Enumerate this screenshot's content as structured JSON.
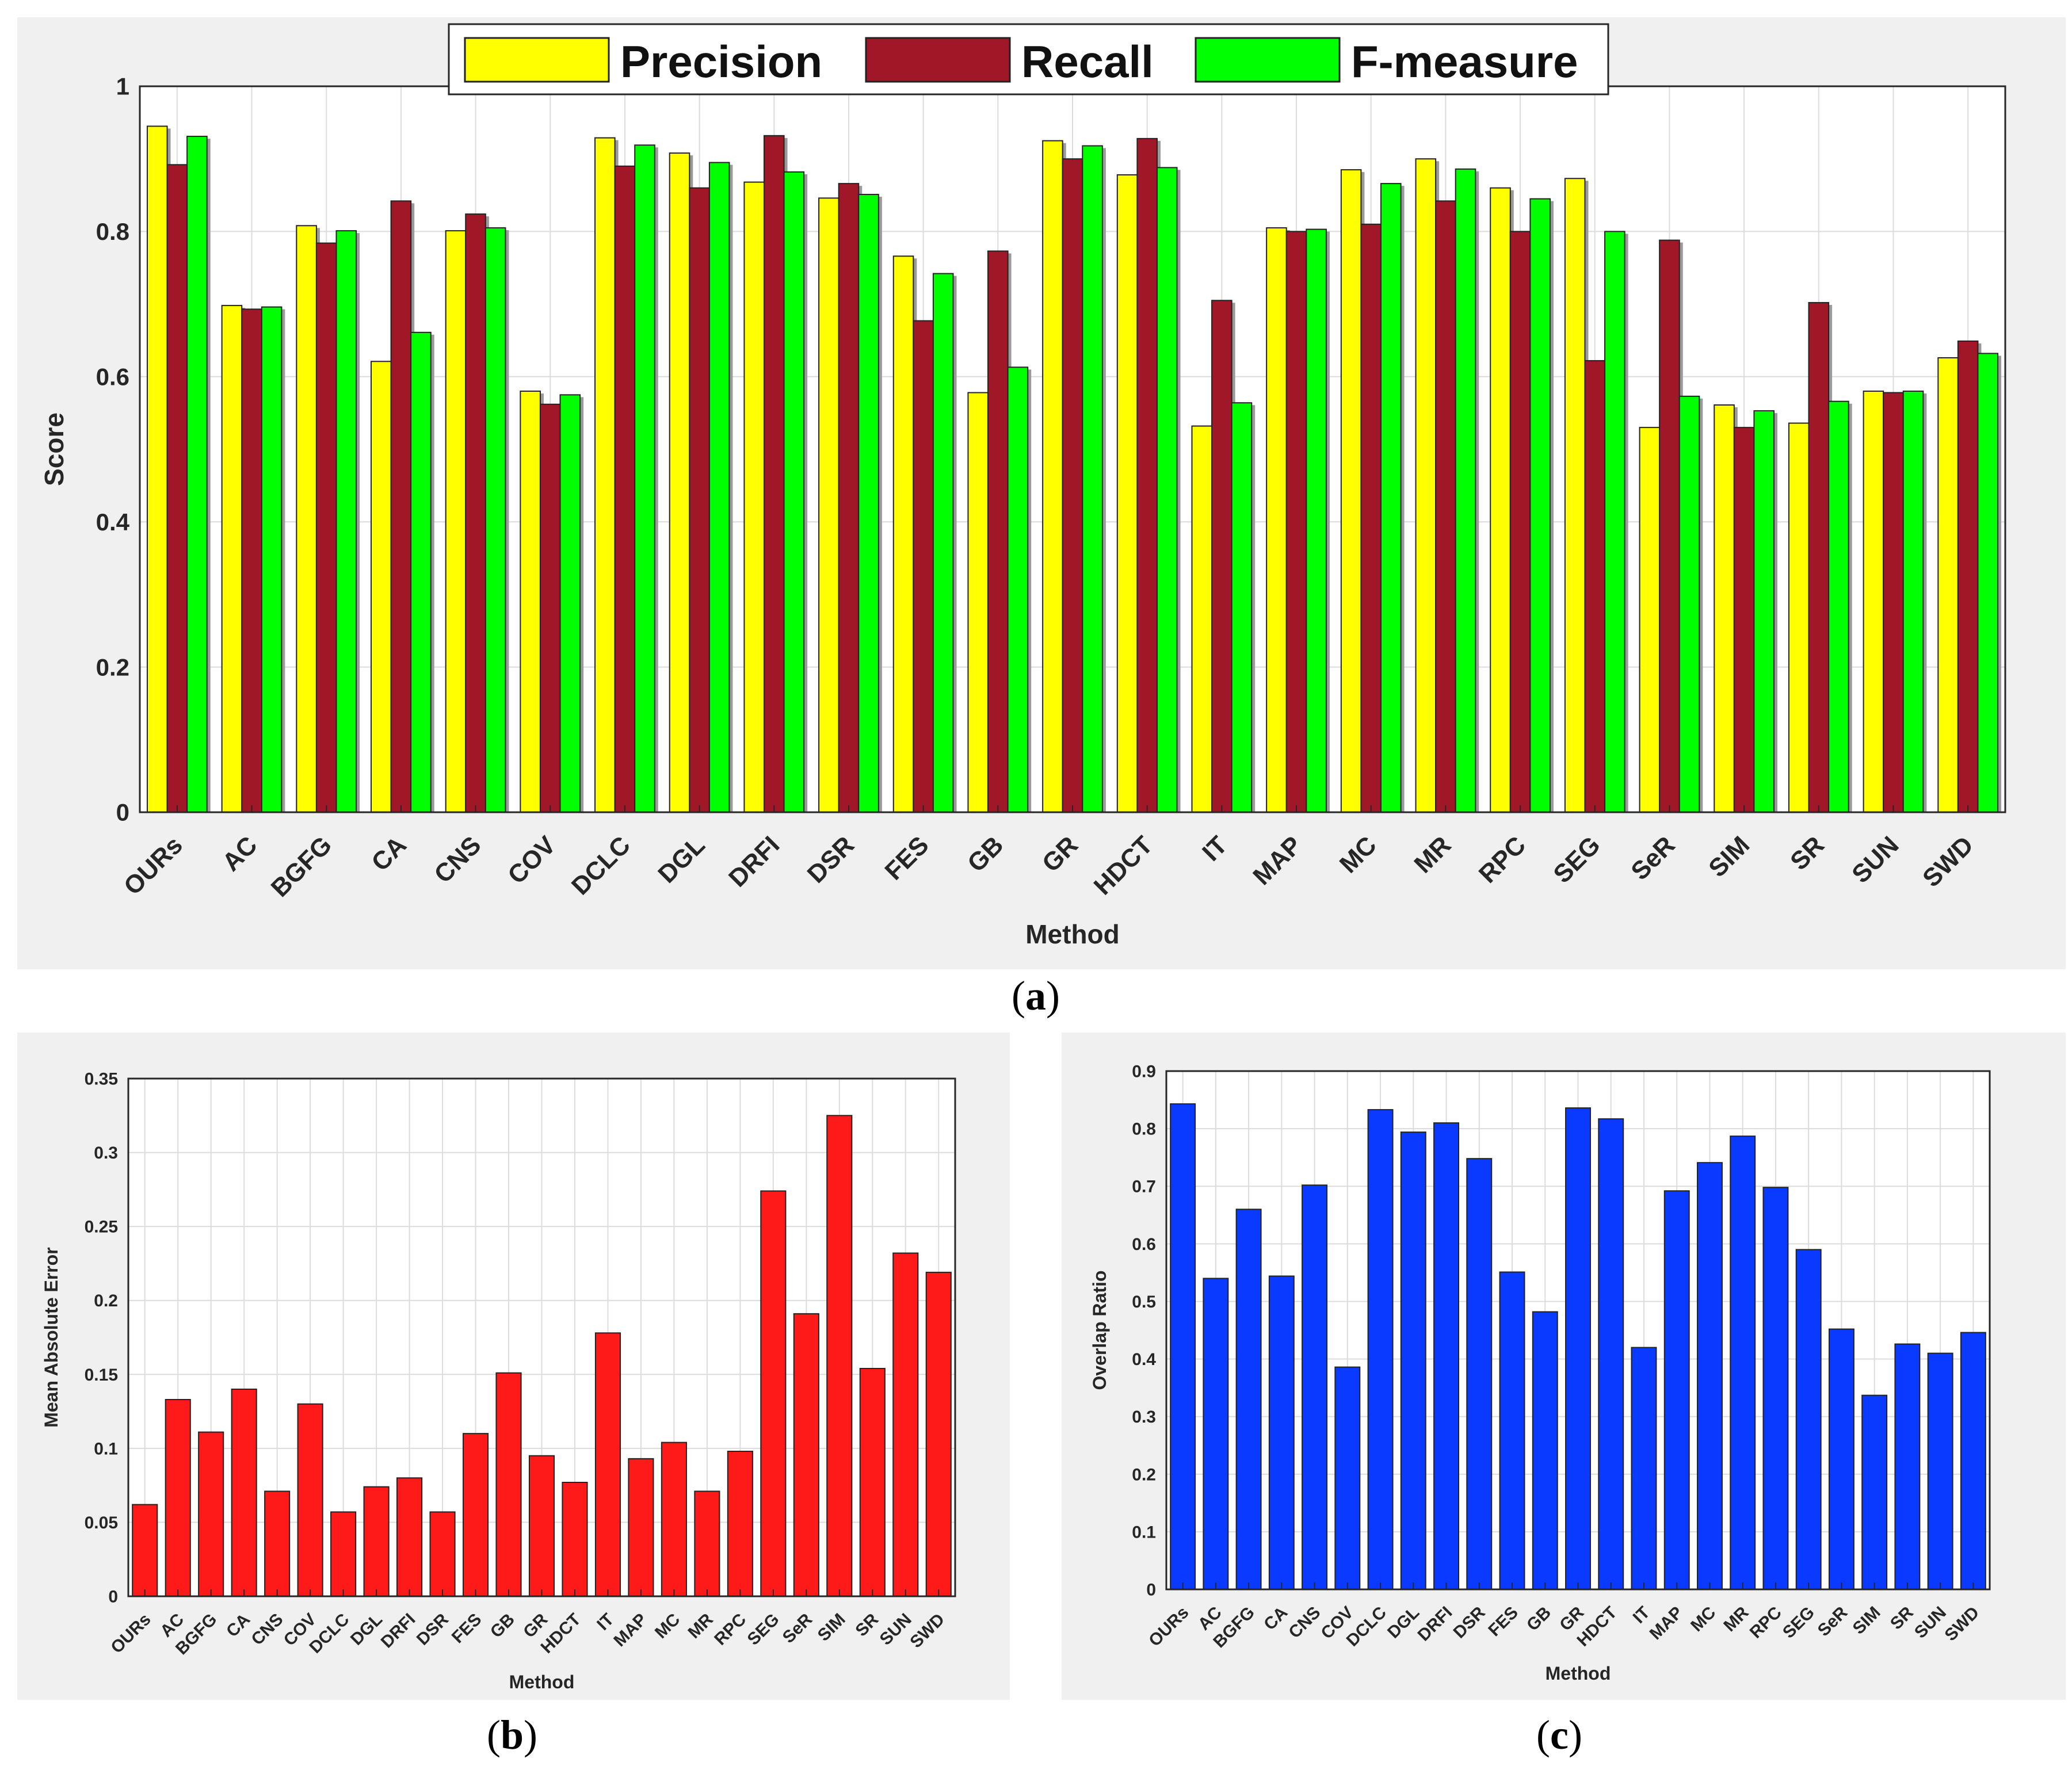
{
  "chart_data": [
    {
      "type": "bar",
      "panel": "a",
      "title": "",
      "xlabel": "Method",
      "ylabel": "Score",
      "ylim": [
        0,
        1
      ],
      "yticks": [
        "0",
        "0.2",
        "0.4",
        "0.6",
        "0.8",
        "1"
      ],
      "ytick_values": [
        0,
        0.2,
        0.4,
        0.6,
        0.8,
        1
      ],
      "grid": true,
      "legend_position": "top-center",
      "categories": [
        "OURs",
        "AC",
        "BGFG",
        "CA",
        "CNS",
        "COV",
        "DCLC",
        "DGL",
        "DRFI",
        "DSR",
        "FES",
        "GB",
        "GR",
        "HDCT",
        "IT",
        "MAP",
        "MC",
        "MR",
        "RPC",
        "SEG",
        "SeR",
        "SIM",
        "SR",
        "SUN",
        "SWD"
      ],
      "series": [
        {
          "name": "Precision",
          "color": "#ffff00",
          "values": [
            0.945,
            0.698,
            0.808,
            0.621,
            0.801,
            0.58,
            0.929,
            0.908,
            0.868,
            0.846,
            0.766,
            0.578,
            0.925,
            0.878,
            0.532,
            0.805,
            0.885,
            0.9,
            0.86,
            0.873,
            0.53,
            0.561,
            0.536,
            0.58,
            0.626
          ]
        },
        {
          "name": "Recall",
          "color": "#a01828",
          "values": [
            0.892,
            0.693,
            0.784,
            0.842,
            0.824,
            0.562,
            0.89,
            0.86,
            0.932,
            0.866,
            0.677,
            0.773,
            0.9,
            0.928,
            0.705,
            0.8,
            0.81,
            0.842,
            0.8,
            0.622,
            0.788,
            0.53,
            0.702,
            0.578,
            0.649
          ]
        },
        {
          "name": "F-measure",
          "color": "#00ff00",
          "values": [
            0.931,
            0.696,
            0.801,
            0.661,
            0.805,
            0.575,
            0.919,
            0.895,
            0.882,
            0.851,
            0.742,
            0.613,
            0.918,
            0.888,
            0.564,
            0.803,
            0.866,
            0.886,
            0.845,
            0.8,
            0.573,
            0.553,
            0.566,
            0.58,
            0.632
          ]
        }
      ]
    },
    {
      "type": "bar",
      "panel": "b",
      "title": "",
      "xlabel": "Method",
      "ylabel": "Mean Absolute Error",
      "ylim": [
        0,
        0.35
      ],
      "yticks": [
        "0",
        "0.05",
        "0.1",
        "0.15",
        "0.2",
        "0.25",
        "0.3",
        "0.35"
      ],
      "ytick_values": [
        0,
        0.05,
        0.1,
        0.15,
        0.2,
        0.25,
        0.3,
        0.35
      ],
      "grid": true,
      "categories": [
        "OURs",
        "AC",
        "BGFG",
        "CA",
        "CNS",
        "COV",
        "DCLC",
        "DGL",
        "DRFI",
        "DSR",
        "FES",
        "GB",
        "GR",
        "HDCT",
        "IT",
        "MAP",
        "MC",
        "MR",
        "RPC",
        "SEG",
        "SeR",
        "SIM",
        "SR",
        "SUN",
        "SWD"
      ],
      "series": [
        {
          "name": "Mean Absolute Error",
          "color": "#ff1a1a",
          "values": [
            0.062,
            0.133,
            0.111,
            0.14,
            0.071,
            0.13,
            0.057,
            0.074,
            0.08,
            0.057,
            0.11,
            0.151,
            0.095,
            0.077,
            0.178,
            0.093,
            0.104,
            0.071,
            0.098,
            0.274,
            0.191,
            0.325,
            0.154,
            0.232,
            0.219
          ]
        }
      ]
    },
    {
      "type": "bar",
      "panel": "c",
      "title": "",
      "xlabel": "Method",
      "ylabel": "Overlap Ratio",
      "ylim": [
        0,
        0.9
      ],
      "yticks": [
        "0",
        "0.1",
        "0.2",
        "0.3",
        "0.4",
        "0.5",
        "0.6",
        "0.7",
        "0.8",
        "0.9"
      ],
      "ytick_values": [
        0,
        0.1,
        0.2,
        0.3,
        0.4,
        0.5,
        0.6,
        0.7,
        0.8,
        0.9
      ],
      "grid": true,
      "categories": [
        "OURs",
        "AC",
        "BGFG",
        "CA",
        "CNS",
        "COV",
        "DCLC",
        "DGL",
        "DRFI",
        "DSR",
        "FES",
        "GB",
        "GR",
        "HDCT",
        "IT",
        "MAP",
        "MC",
        "MR",
        "RPC",
        "SEG",
        "SeR",
        "SIM",
        "SR",
        "SUN",
        "SWD"
      ],
      "series": [
        {
          "name": "Overlap Ratio",
          "color": "#0a3aff",
          "values": [
            0.843,
            0.54,
            0.66,
            0.544,
            0.702,
            0.386,
            0.833,
            0.794,
            0.81,
            0.748,
            0.551,
            0.482,
            0.836,
            0.817,
            0.42,
            0.692,
            0.741,
            0.787,
            0.698,
            0.59,
            0.452,
            0.337,
            0.426,
            0.41,
            0.446
          ]
        }
      ]
    }
  ],
  "captions": {
    "a": {
      "open": "(",
      "letter": "a",
      "close": ")"
    },
    "b": {
      "open": "(",
      "letter": "b",
      "close": ")"
    },
    "c": {
      "open": "(",
      "letter": "c",
      "close": ")"
    }
  }
}
